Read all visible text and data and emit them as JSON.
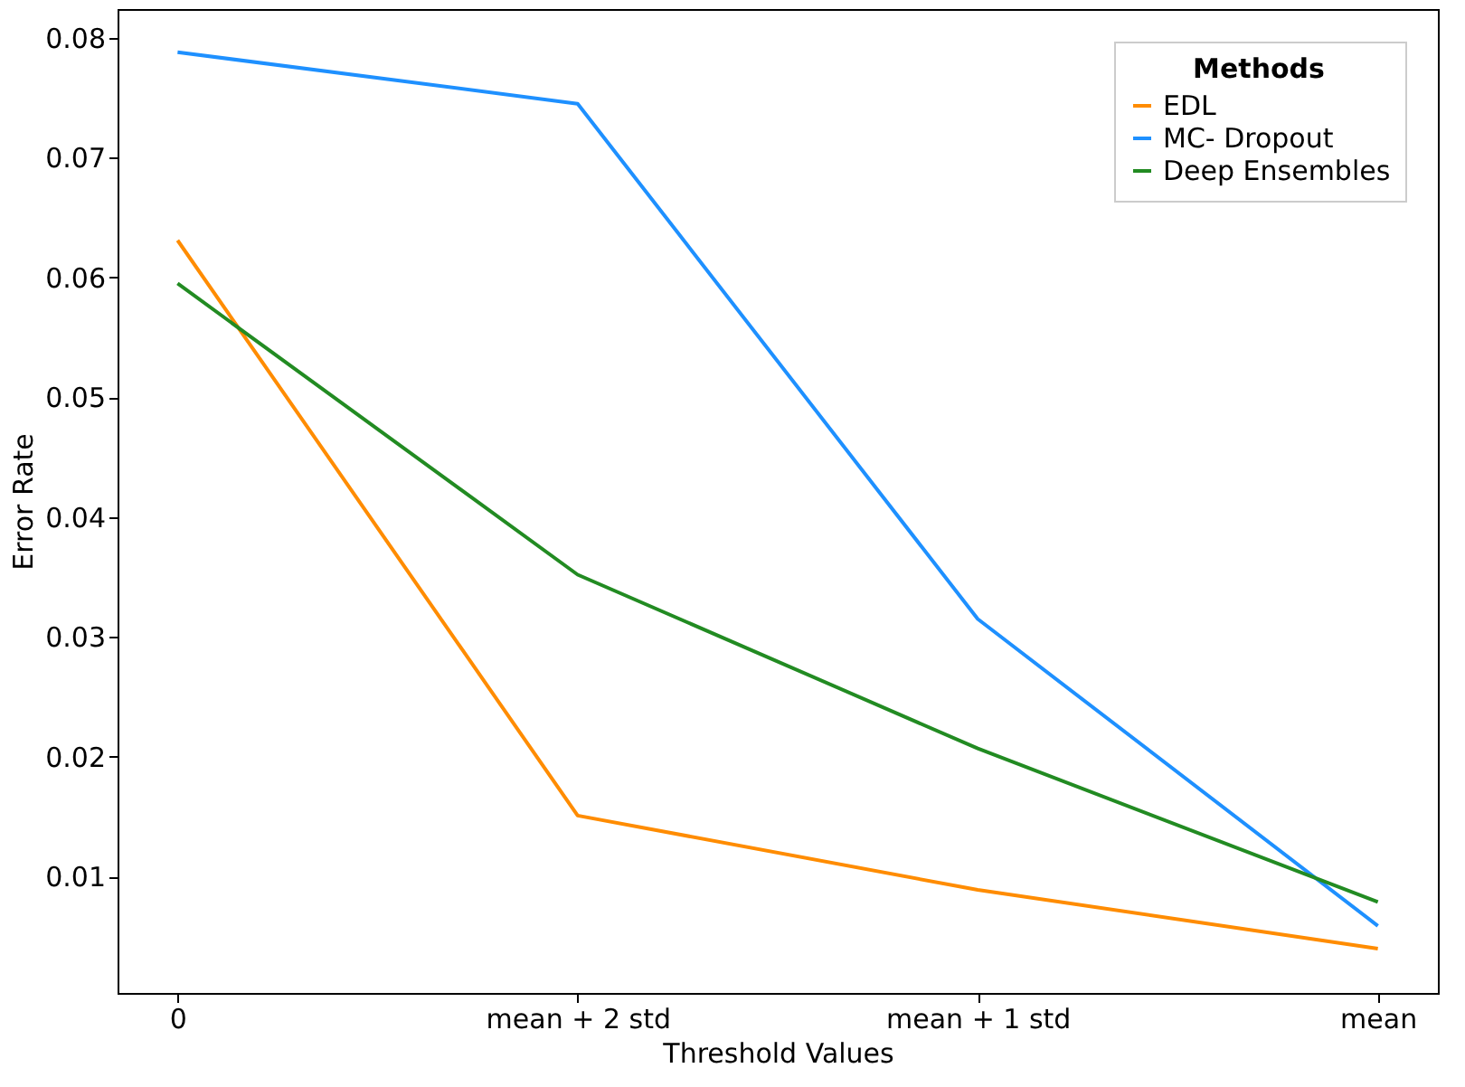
{
  "chart_data": {
    "type": "line",
    "xlabel": "Threshold Values",
    "ylabel": "Error Rate",
    "legend_title": "Methods",
    "categories": [
      "0",
      "mean + 2 std",
      "mean + 1 std",
      "mean"
    ],
    "series": [
      {
        "name": "EDL",
        "color": "#ff8c00",
        "values": [
          0.0631,
          0.0151,
          0.0089,
          0.004
        ]
      },
      {
        "name": "MC- Dropout",
        "color": "#1e90ff",
        "values": [
          0.0788,
          0.0745,
          0.0315,
          0.0059
        ]
      },
      {
        "name": "Deep Ensembles",
        "color": "#228b22",
        "values": [
          0.0595,
          0.0352,
          0.0207,
          0.0079
        ]
      }
    ],
    "ylim": [
      0.0003,
      0.0824
    ],
    "yticks": [
      0.01,
      0.02,
      0.03,
      0.04,
      0.05,
      0.06,
      0.07,
      0.08
    ],
    "grid": false,
    "legend": "top right",
    "marker": "none",
    "line_style": "solid"
  }
}
